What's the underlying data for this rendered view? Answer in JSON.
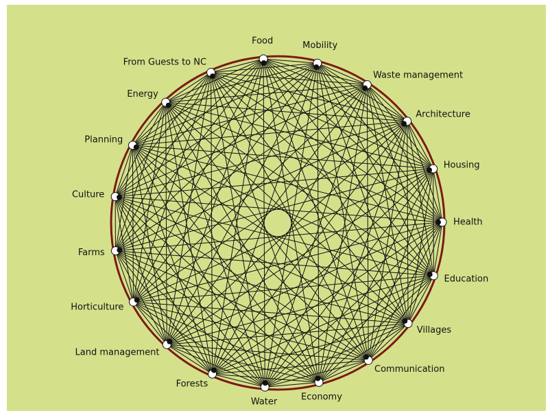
{
  "nodes": [
    {
      "label": "Food"
    },
    {
      "label": "Mobility"
    },
    {
      "label": "Waste management"
    },
    {
      "label": "Architecture"
    },
    {
      "label": "Housing"
    },
    {
      "label": "Health"
    },
    {
      "label": "Education"
    },
    {
      "label": "Villages"
    },
    {
      "label": "Communication"
    },
    {
      "label": "Economy"
    },
    {
      "label": "Water"
    },
    {
      "label": "Forests"
    },
    {
      "label": "Land management"
    },
    {
      "label": "Horticulture"
    },
    {
      "label": "Farms"
    },
    {
      "label": "Culture"
    },
    {
      "label": "Planning"
    },
    {
      "label": "Energy"
    },
    {
      "label": "From Guests to NC"
    }
  ]
}
